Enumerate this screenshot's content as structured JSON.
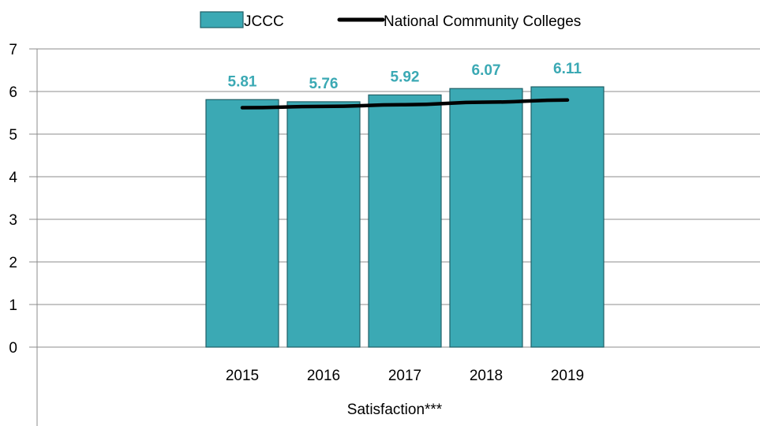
{
  "chart_data": {
    "type": "bar",
    "categories": [
      "2015",
      "2016",
      "2017",
      "2018",
      "2019"
    ],
    "series": [
      {
        "name": "JCCC",
        "type": "bar",
        "values": [
          5.81,
          5.76,
          5.92,
          6.07,
          6.11
        ],
        "color": "#3BA9B4",
        "label_color": "#3BA9B4"
      },
      {
        "name": "National Community Colleges",
        "type": "line",
        "values": [
          5.62,
          5.65,
          5.69,
          5.75,
          5.8
        ],
        "color": "#000000"
      }
    ],
    "data_labels": [
      "5.81",
      "5.76",
      "5.92",
      "6.07",
      "6.11"
    ],
    "xlabel": "Satisfaction***",
    "ylabel": "",
    "ylim": [
      0,
      7
    ],
    "yticks": [
      "0",
      "1",
      "2",
      "3",
      "4",
      "5",
      "6",
      "7"
    ],
    "grid": true,
    "legend_position": "top"
  }
}
